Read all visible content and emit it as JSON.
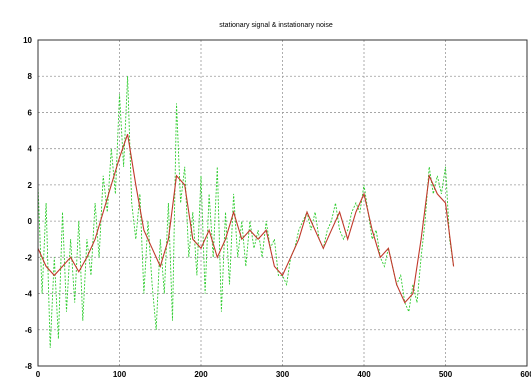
{
  "chart_data": {
    "type": "line",
    "title": "stationary signal & instationary noise",
    "xlabel": "",
    "ylabel": "",
    "xlim": [
      0,
      600
    ],
    "ylim": [
      -8,
      10
    ],
    "x_ticks": [
      0,
      100,
      200,
      300,
      400,
      500,
      600
    ],
    "y_ticks": [
      10,
      8,
      6,
      4,
      2,
      0,
      -2,
      -4,
      -6,
      -8
    ],
    "grid": true,
    "colors": {
      "signal": "#c0392b",
      "noisy": "#2fcc2f"
    },
    "series": [
      {
        "style": "solid",
        "color": "#c0392b",
        "x": [
          0,
          10,
          20,
          30,
          40,
          50,
          60,
          70,
          80,
          90,
          100,
          110,
          120,
          130,
          140,
          150,
          160,
          170,
          180,
          190,
          200,
          210,
          220,
          230,
          240,
          250,
          260,
          270,
          280,
          290,
          300,
          310,
          320,
          330,
          340,
          350,
          360,
          370,
          380,
          390,
          400,
          410,
          420,
          430,
          440,
          450,
          460,
          470,
          480,
          490,
          500,
          510
        ],
        "values": [
          -1.5,
          -2.5,
          -3.0,
          -2.5,
          -2.0,
          -2.8,
          -2.0,
          -1.0,
          0.5,
          2.0,
          3.5,
          4.8,
          2.0,
          -0.5,
          -1.5,
          -2.5,
          -1.0,
          2.5,
          2.0,
          -1.0,
          -1.5,
          -0.5,
          -2.0,
          -1.0,
          0.5,
          -1.0,
          -0.5,
          -1.0,
          -0.5,
          -2.5,
          -3.0,
          -2.0,
          -1.0,
          0.5,
          -0.5,
          -1.5,
          -0.5,
          0.5,
          -1.0,
          0.5,
          1.5,
          -0.5,
          -2.0,
          -1.5,
          -3.5,
          -4.5,
          -4.0,
          -1.0,
          2.5,
          1.5,
          1.0,
          -2.5
        ]
      },
      {
        "style": "dashed",
        "color": "#2fcc2f",
        "x": [
          0,
          5,
          10,
          15,
          20,
          25,
          30,
          35,
          40,
          45,
          50,
          55,
          60,
          65,
          70,
          75,
          80,
          85,
          90,
          95,
          100,
          105,
          110,
          115,
          120,
          125,
          130,
          135,
          140,
          145,
          150,
          155,
          160,
          165,
          170,
          175,
          180,
          185,
          190,
          195,
          200,
          205,
          210,
          215,
          220,
          225,
          230,
          235,
          240,
          245,
          250,
          255,
          260,
          265,
          270,
          275,
          280,
          285,
          290,
          295,
          300,
          305,
          310,
          315,
          320,
          325,
          330,
          335,
          340,
          345,
          350,
          355,
          360,
          365,
          370,
          375,
          380,
          385,
          390,
          395,
          400,
          405,
          410,
          415,
          420,
          425,
          430,
          435,
          440,
          445,
          450,
          455,
          460,
          465,
          470,
          475,
          480,
          485,
          490,
          495,
          500,
          505,
          510
        ],
        "values": [
          2.0,
          -4.0,
          1.0,
          -7.0,
          -2.0,
          -6.5,
          0.5,
          -5.0,
          -1.0,
          -4.5,
          0.0,
          -5.5,
          -1.0,
          -3.0,
          1.0,
          -2.0,
          2.5,
          0.5,
          4.0,
          1.5,
          7.0,
          3.0,
          8.0,
          1.0,
          -1.0,
          1.5,
          -4.0,
          0.0,
          -3.5,
          -6.0,
          -1.0,
          -4.0,
          1.0,
          -5.5,
          6.5,
          1.0,
          3.0,
          -2.0,
          0.5,
          -3.0,
          2.5,
          -4.0,
          1.5,
          -2.0,
          3.0,
          -5.0,
          0.5,
          -3.5,
          1.5,
          -2.0,
          0.0,
          -2.5,
          0.0,
          -1.5,
          -0.5,
          -2.0,
          0.0,
          -1.5,
          -1.0,
          -3.0,
          -3.0,
          -3.5,
          -2.0,
          -1.5,
          -0.5,
          0.0,
          0.5,
          -0.5,
          0.5,
          -1.0,
          -1.5,
          -0.5,
          0.0,
          1.0,
          -0.5,
          -1.0,
          -0.5,
          0.5,
          1.0,
          0.5,
          2.0,
          0.5,
          -1.0,
          -0.5,
          -2.0,
          -2.5,
          -1.5,
          -2.5,
          -3.5,
          -3.0,
          -4.5,
          -5.0,
          -3.5,
          -4.5,
          -2.0,
          0.0,
          3.0,
          1.5,
          2.5,
          1.5,
          3.0,
          -1.0,
          -2.5
        ]
      }
    ]
  }
}
